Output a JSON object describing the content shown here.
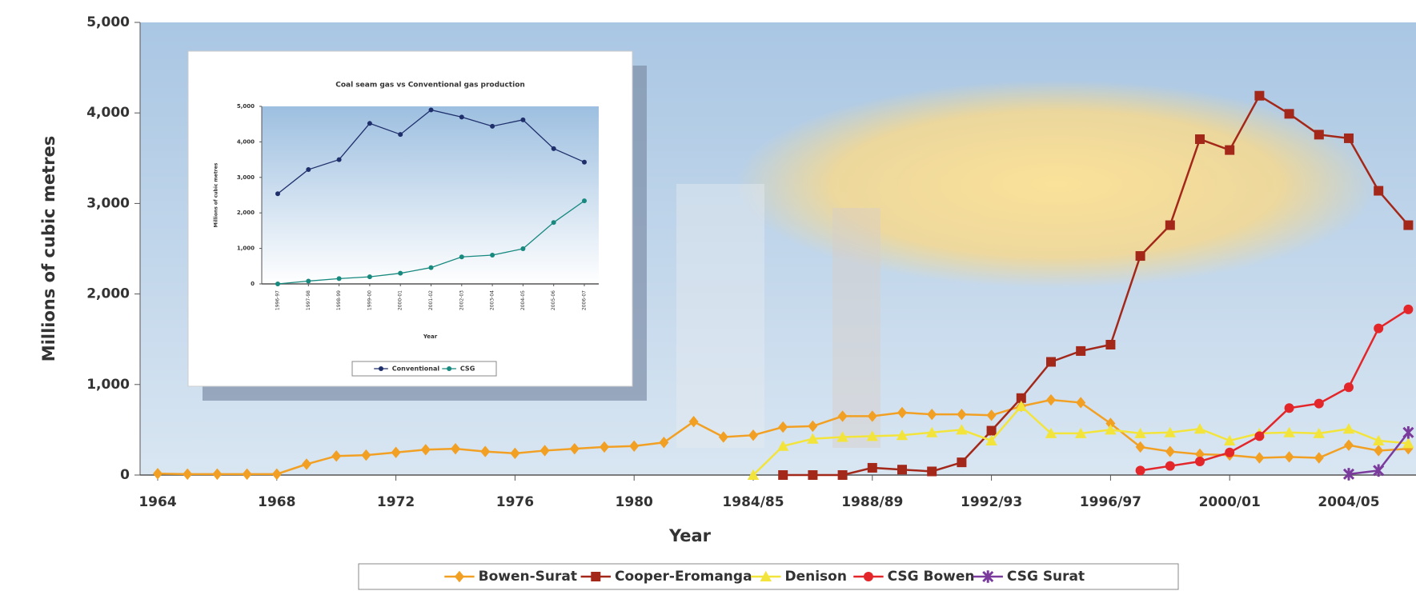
{
  "chart_data": [
    {
      "type": "line",
      "x_label": "Year",
      "y_label": "Millions of cubic metres",
      "categories": [
        "1964",
        null,
        null,
        null,
        "1968",
        null,
        null,
        null,
        "1972",
        null,
        null,
        null,
        "1976",
        null,
        null,
        null,
        "1980",
        null,
        null,
        null,
        "1984/85",
        null,
        null,
        null,
        "1988/89",
        null,
        null,
        null,
        "1992/93",
        null,
        null,
        null,
        "1996/97",
        null,
        null,
        null,
        "2000/01",
        null,
        null,
        null,
        "2004/05",
        null,
        null
      ],
      "ylim": [
        0,
        5000
      ],
      "yticks": [
        0,
        {
          "value": 1000,
          "label": "1,000"
        },
        {
          "value": 2000,
          "label": "2,000"
        },
        {
          "value": 3000,
          "label": "3,000"
        },
        {
          "value": 4000,
          "label": "4,000"
        },
        {
          "value": 5000,
          "label": "5,000"
        }
      ],
      "grid": false,
      "legend": "bottom",
      "series": [
        {
          "name": "Bowen-Surat",
          "color": "#f2a024",
          "marker": "diamond",
          "values": [
            15,
            10,
            10,
            10,
            10,
            120,
            210,
            220,
            250,
            280,
            290,
            260,
            240,
            270,
            290,
            310,
            320,
            360,
            590,
            420,
            440,
            530,
            540,
            650,
            650,
            690,
            670,
            670,
            660,
            760,
            830,
            800,
            570,
            310,
            260,
            230,
            220,
            190,
            200,
            190,
            330,
            270,
            290
          ]
        },
        {
          "name": "Cooper-Eromanga",
          "color": "#a3281a",
          "marker": "square",
          "values": [
            null,
            null,
            null,
            null,
            null,
            null,
            null,
            null,
            null,
            null,
            null,
            null,
            null,
            null,
            null,
            null,
            null,
            null,
            null,
            null,
            null,
            0,
            0,
            0,
            80,
            60,
            40,
            140,
            490,
            850,
            1250,
            1370,
            1440,
            2420,
            2760,
            3710,
            3590,
            4190,
            3990,
            3760,
            3720,
            3140,
            2760
          ]
        },
        {
          "name": "Denison",
          "color": "#f3e43c",
          "marker": "triangle",
          "values": [
            null,
            null,
            null,
            null,
            null,
            null,
            null,
            null,
            null,
            null,
            null,
            null,
            null,
            null,
            null,
            null,
            null,
            null,
            null,
            null,
            0,
            320,
            400,
            420,
            430,
            440,
            470,
            500,
            380,
            760,
            460,
            460,
            500,
            460,
            470,
            510,
            380,
            460,
            470,
            460,
            510,
            380,
            350
          ]
        },
        {
          "name": "CSG Bowen",
          "color": "#e3262a",
          "marker": "circle",
          "values": [
            null,
            null,
            null,
            null,
            null,
            null,
            null,
            null,
            null,
            null,
            null,
            null,
            null,
            null,
            null,
            null,
            null,
            null,
            null,
            null,
            null,
            null,
            null,
            null,
            null,
            null,
            null,
            null,
            null,
            null,
            null,
            null,
            null,
            50,
            100,
            150,
            250,
            430,
            740,
            790,
            970,
            1620,
            1830
          ]
        },
        {
          "name": "CSG Surat",
          "color": "#7a3b9c",
          "marker": "star",
          "values": [
            null,
            null,
            null,
            null,
            null,
            null,
            null,
            null,
            null,
            null,
            null,
            null,
            null,
            null,
            null,
            null,
            null,
            null,
            null,
            null,
            null,
            null,
            null,
            null,
            null,
            null,
            null,
            null,
            null,
            null,
            null,
            null,
            null,
            null,
            null,
            null,
            null,
            null,
            null,
            null,
            10,
            50,
            470
          ]
        }
      ]
    },
    {
      "type": "line",
      "title": "Coal seam gas vs Conventional gas production",
      "x_label": "Year",
      "y_label": "Millions of cubic metres",
      "categories": [
        "1996-97",
        "1997-98",
        "1998-99",
        "1999-00",
        "2000-01",
        "2001-02",
        "2002-03",
        "2003-04",
        "2004-05",
        "2005-06",
        "2006-07"
      ],
      "ylim": [
        0,
        5000
      ],
      "yticks": [
        0,
        {
          "value": 1000,
          "label": "1,000"
        },
        {
          "value": 2000,
          "label": "2,000"
        },
        {
          "value": 3000,
          "label": "3,000"
        },
        {
          "value": 4000,
          "label": "4,000"
        },
        {
          "value": 5000,
          "label": "5,000"
        }
      ],
      "grid": false,
      "legend": "bottom",
      "series": [
        {
          "name": "Conventional",
          "color": "#1f2f6b",
          "marker": "circle",
          "values": [
            2540,
            3220,
            3500,
            4520,
            4210,
            4900,
            4700,
            4440,
            4620,
            3810,
            3430
          ]
        },
        {
          "name": "CSG",
          "color": "#17897f",
          "marker": "circle",
          "values": [
            0,
            80,
            150,
            200,
            300,
            460,
            760,
            810,
            990,
            1730,
            2340
          ]
        }
      ]
    }
  ]
}
